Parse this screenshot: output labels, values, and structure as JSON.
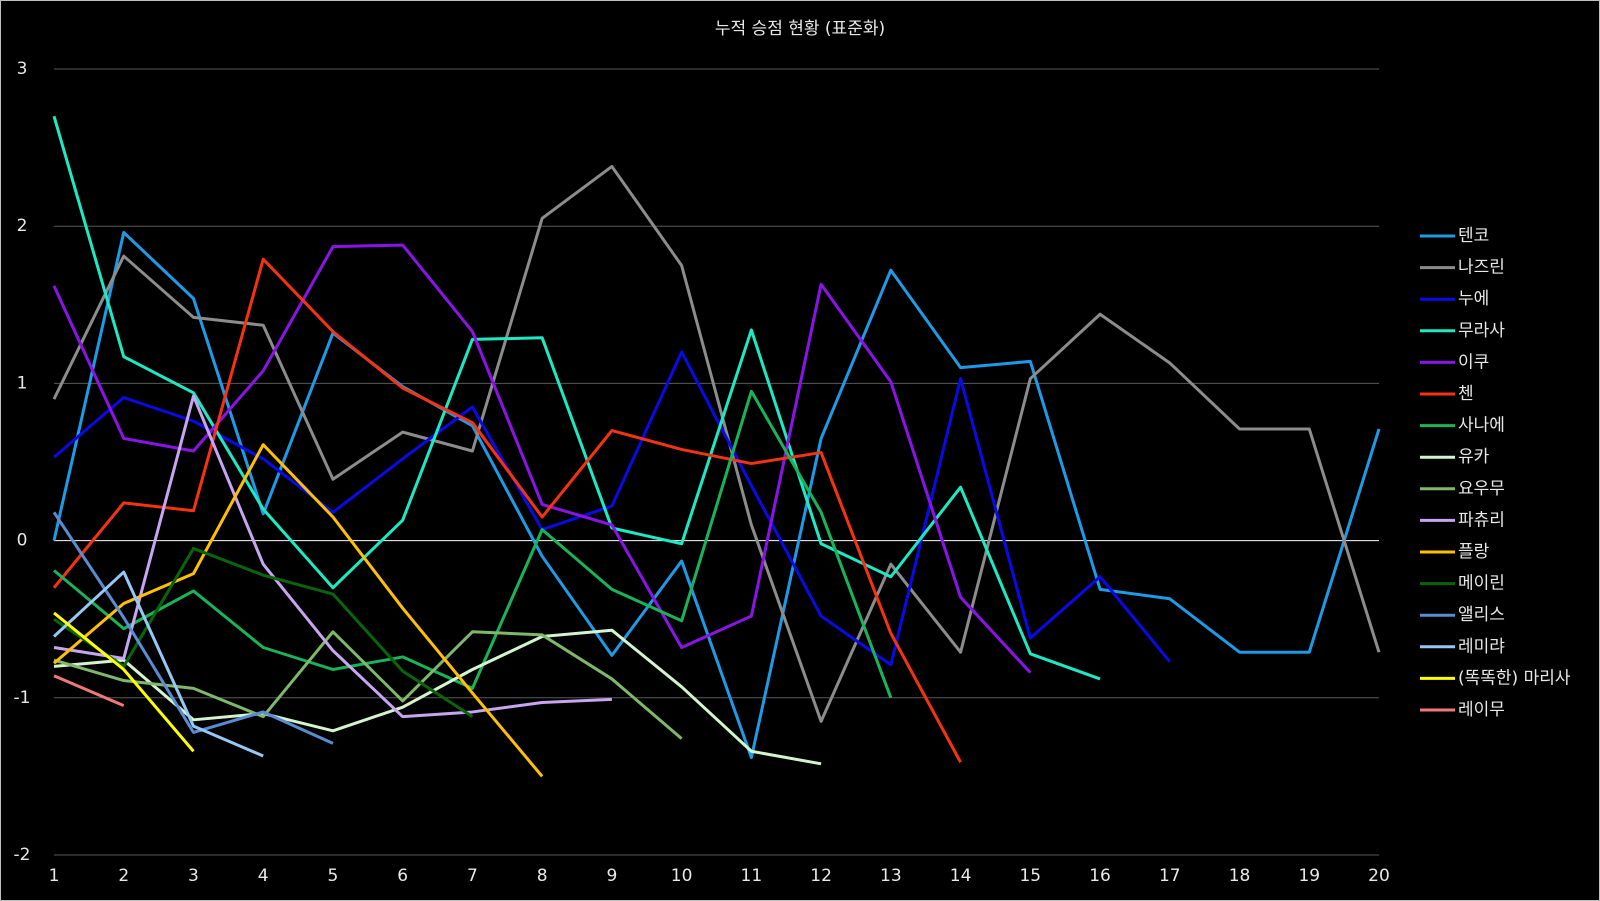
{
  "chart_data": {
    "type": "line",
    "title": "누적 승점 현황 (표준화)",
    "x": [
      1,
      2,
      3,
      4,
      5,
      6,
      7,
      8,
      9,
      10,
      11,
      12,
      13,
      14,
      15,
      16,
      17,
      18,
      19,
      20
    ],
    "xlim": [
      1,
      20
    ],
    "xticks": [
      1,
      2,
      3,
      4,
      5,
      6,
      7,
      8,
      9,
      10,
      11,
      12,
      13,
      14,
      15,
      16,
      17,
      18,
      19,
      20
    ],
    "ylim": [
      -2,
      3
    ],
    "yticks": [
      -2,
      -1,
      0,
      1,
      2,
      3
    ],
    "grid": true,
    "legend": "right",
    "series": [
      {
        "name": "텐코",
        "color": "#1e9be6",
        "values": [
          0.0,
          1.96,
          1.54,
          0.17,
          1.32,
          0.98,
          0.73,
          -0.1,
          -0.73,
          -0.13,
          -1.38,
          0.65,
          1.72,
          1.1,
          1.14,
          -0.31,
          -0.37,
          -0.71,
          -0.71,
          0.71
        ]
      },
      {
        "name": "나즈린",
        "color": "#8c8c8c",
        "values": [
          0.9,
          1.81,
          1.42,
          1.37,
          0.39,
          0.69,
          0.57,
          2.05,
          2.38,
          1.75,
          0.1,
          -1.15,
          -0.15,
          -0.71,
          1.03,
          1.44,
          1.13,
          0.71,
          0.71,
          -0.71
        ]
      },
      {
        "name": "누에",
        "color": "#0a0ae6",
        "values": [
          0.53,
          0.91,
          0.76,
          0.52,
          0.18,
          0.52,
          0.85,
          0.07,
          0.22,
          1.2,
          0.35,
          -0.48,
          -0.79,
          1.03,
          -0.62,
          -0.23,
          -0.77,
          null,
          null,
          null
        ]
      },
      {
        "name": "무라사",
        "color": "#1de9c4",
        "values": [
          2.7,
          1.17,
          0.94,
          0.2,
          -0.3,
          0.13,
          1.28,
          1.29,
          0.08,
          -0.02,
          1.34,
          -0.02,
          -0.23,
          0.34,
          -0.72,
          -0.88,
          null,
          null,
          null,
          null
        ]
      },
      {
        "name": "이쿠",
        "color": "#8a14e6",
        "values": [
          1.62,
          0.65,
          0.57,
          1.08,
          1.87,
          1.88,
          1.33,
          0.23,
          0.1,
          -0.68,
          -0.48,
          1.63,
          1.01,
          -0.36,
          -0.84,
          null,
          null,
          null,
          null,
          null
        ]
      },
      {
        "name": "첸",
        "color": "#f53214",
        "values": [
          -0.3,
          0.24,
          0.19,
          1.79,
          1.33,
          0.97,
          0.75,
          0.15,
          0.7,
          0.58,
          0.49,
          0.56,
          -0.59,
          -1.41,
          null,
          null,
          null,
          null,
          null,
          null
        ]
      },
      {
        "name": "사나에",
        "color": "#19b45a",
        "values": [
          -0.19,
          -0.56,
          -0.32,
          -0.68,
          -0.82,
          -0.74,
          -0.94,
          0.07,
          -0.31,
          -0.51,
          0.95,
          0.18,
          -1.0,
          null,
          null,
          null,
          null,
          null,
          null,
          null
        ]
      },
      {
        "name": "유카",
        "color": "#d2f5cd",
        "values": [
          -0.8,
          -0.76,
          -1.14,
          -1.1,
          -1.21,
          -1.06,
          -0.82,
          -0.61,
          -0.57,
          -0.93,
          -1.34,
          -1.42,
          null,
          null,
          null,
          null,
          null,
          null,
          null,
          null
        ]
      },
      {
        "name": "요우무",
        "color": "#7fb86a",
        "values": [
          -0.76,
          -0.89,
          -0.94,
          -1.12,
          -0.58,
          -1.02,
          -0.58,
          -0.6,
          -0.88,
          -1.26,
          null,
          null,
          null,
          null,
          null,
          null,
          null,
          null,
          null,
          null
        ]
      },
      {
        "name": "파츄리",
        "color": "#c8a5f0",
        "values": [
          -0.68,
          -0.75,
          0.92,
          -0.15,
          -0.7,
          -1.12,
          -1.09,
          -1.03,
          -1.01,
          null,
          null,
          null,
          null,
          null,
          null,
          null,
          null,
          null,
          null,
          null
        ]
      },
      {
        "name": "플랑",
        "color": "#ffc000",
        "values": [
          -0.78,
          -0.4,
          -0.21,
          0.61,
          0.15,
          -0.43,
          -0.97,
          -1.5,
          null,
          null,
          null,
          null,
          null,
          null,
          null,
          null,
          null,
          null,
          null,
          null
        ]
      },
      {
        "name": "메이린",
        "color": "#0a640a",
        "values": [
          -0.5,
          -0.8,
          -0.05,
          -0.22,
          -0.34,
          -0.83,
          -1.12,
          null,
          null,
          null,
          null,
          null,
          null,
          null,
          null,
          null,
          null,
          null,
          null,
          null
        ]
      },
      {
        "name": "앨리스",
        "color": "#5a8cd2",
        "values": [
          0.18,
          -0.49,
          -1.22,
          -1.09,
          -1.29,
          null,
          null,
          null,
          null,
          null,
          null,
          null,
          null,
          null,
          null,
          null,
          null,
          null,
          null,
          null
        ]
      },
      {
        "name": "레미랴",
        "color": "#96c8f5",
        "values": [
          -0.61,
          -0.2,
          -1.18,
          -1.37,
          null,
          null,
          null,
          null,
          null,
          null,
          null,
          null,
          null,
          null,
          null,
          null,
          null,
          null,
          null,
          null
        ]
      },
      {
        "name": "(똑똑한) 마리사",
        "color": "#ffff00",
        "values": [
          -0.46,
          -0.82,
          -1.34,
          null,
          null,
          null,
          null,
          null,
          null,
          null,
          null,
          null,
          null,
          null,
          null,
          null,
          null,
          null,
          null,
          null
        ]
      },
      {
        "name": "레이무",
        "color": "#f07878",
        "values": [
          -0.86,
          -1.05,
          null,
          null,
          null,
          null,
          null,
          null,
          null,
          null,
          null,
          null,
          null,
          null,
          null,
          null,
          null,
          null,
          null,
          null
        ]
      }
    ]
  }
}
